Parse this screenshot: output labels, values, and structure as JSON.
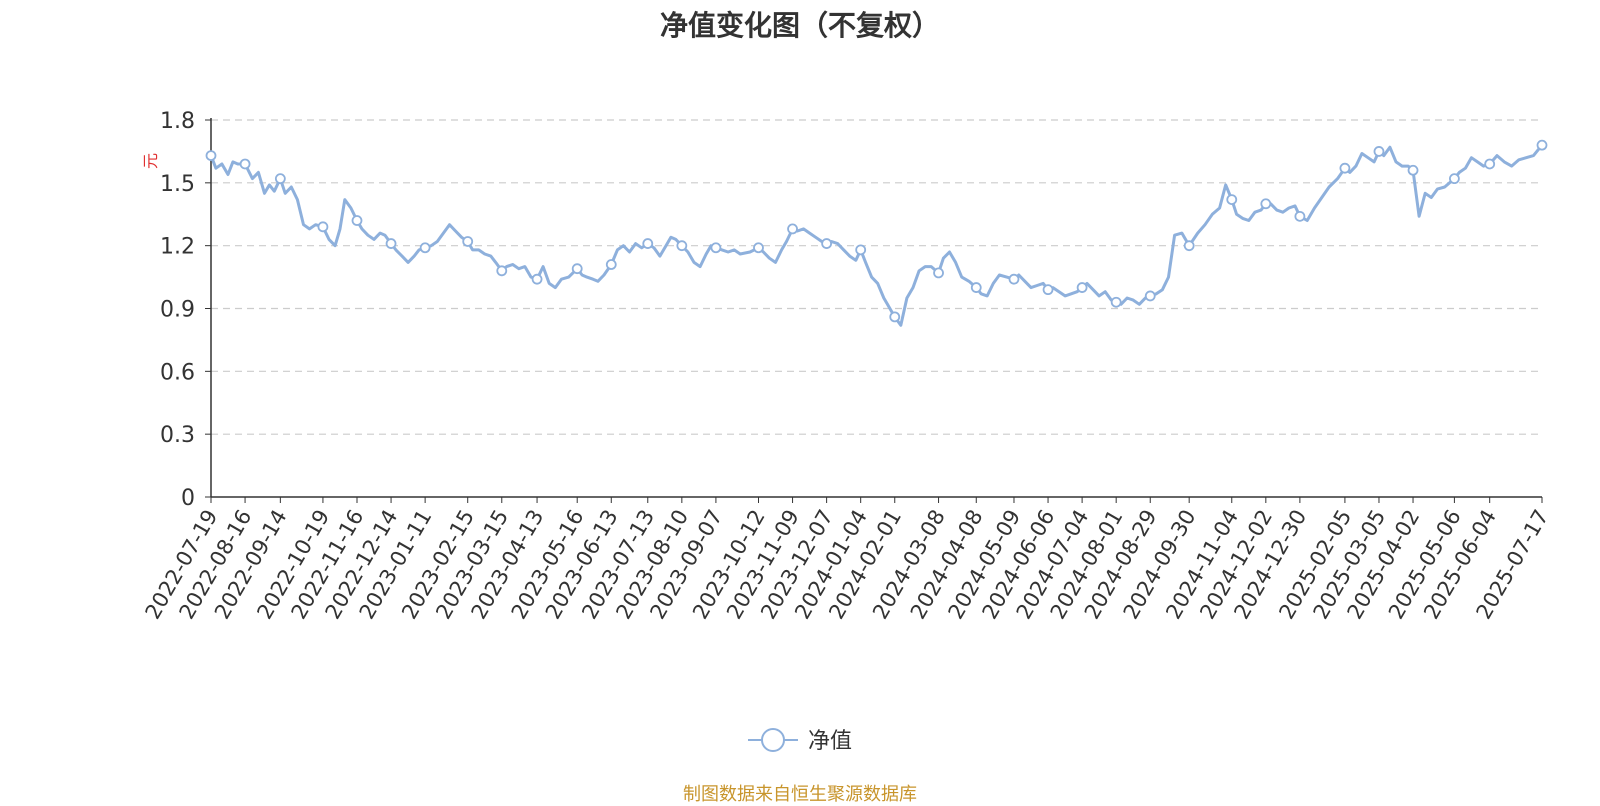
{
  "chart_data": {
    "type": "line",
    "title": "净值变化图（不复权）",
    "ylabel": "元",
    "xlabel": "",
    "ylim": [
      0,
      1.8
    ],
    "yticks": [
      "0",
      "0.3",
      "0.6",
      "0.9",
      "1.2",
      "1.5",
      "1.8"
    ],
    "x_start": "2022-07-19",
    "x_end": "2025-07-17",
    "x_tick_labels": [
      "2022-07-19",
      "2022-08-16",
      "2022-09-14",
      "2022-10-19",
      "2022-11-16",
      "2022-12-14",
      "2023-01-11",
      "2023-02-15",
      "2023-03-15",
      "2023-04-13",
      "2023-05-16",
      "2023-06-13",
      "2023-07-13",
      "2023-08-10",
      "2023-09-07",
      "2023-10-12",
      "2023-11-09",
      "2023-12-07",
      "2024-01-04",
      "2024-02-01",
      "2024-03-08",
      "2024-04-08",
      "2024-05-09",
      "2024-06-06",
      "2024-07-04",
      "2024-08-01",
      "2024-08-29",
      "2024-09-30",
      "2024-11-04",
      "2024-12-02",
      "2024-12-30",
      "2025-02-05",
      "2025-03-05",
      "2025-04-02",
      "2025-05-06",
      "2025-06-04",
      "2025-07-17"
    ],
    "grid": true,
    "legend_position": "bottom",
    "series": [
      {
        "name": "净值",
        "color": "#8eb0dc",
        "x": [
          "2022-07-19",
          "2022-07-23",
          "2022-07-28",
          "2022-08-02",
          "2022-08-06",
          "2022-08-10",
          "2022-08-16",
          "2022-08-22",
          "2022-08-27",
          "2022-09-01",
          "2022-09-05",
          "2022-09-09",
          "2022-09-14",
          "2022-09-18",
          "2022-09-23",
          "2022-09-28",
          "2022-10-03",
          "2022-10-08",
          "2022-10-13",
          "2022-10-19",
          "2022-10-24",
          "2022-10-29",
          "2022-11-02",
          "2022-11-06",
          "2022-11-11",
          "2022-11-16",
          "2022-11-20",
          "2022-11-25",
          "2022-11-30",
          "2022-12-05",
          "2022-12-09",
          "2022-12-14",
          "2022-12-18",
          "2022-12-23",
          "2022-12-28",
          "2023-01-02",
          "2023-01-06",
          "2023-01-11",
          "2023-01-16",
          "2023-01-21",
          "2023-01-26",
          "2023-01-31",
          "2023-02-05",
          "2023-02-10",
          "2023-02-15",
          "2023-02-19",
          "2023-02-24",
          "2023-03-01",
          "2023-03-06",
          "2023-03-10",
          "2023-03-15",
          "2023-03-19",
          "2023-03-24",
          "2023-03-29",
          "2023-04-03",
          "2023-04-08",
          "2023-04-13",
          "2023-04-18",
          "2023-04-23",
          "2023-04-28",
          "2023-05-03",
          "2023-05-09",
          "2023-05-16",
          "2023-05-20",
          "2023-05-24",
          "2023-05-29",
          "2023-06-02",
          "2023-06-07",
          "2023-06-13",
          "2023-06-18",
          "2023-06-23",
          "2023-06-28",
          "2023-07-03",
          "2023-07-08",
          "2023-07-13",
          "2023-07-18",
          "2023-07-23",
          "2023-07-28",
          "2023-08-01",
          "2023-08-05",
          "2023-08-10",
          "2023-08-15",
          "2023-08-20",
          "2023-08-25",
          "2023-08-30",
          "2023-09-03",
          "2023-09-07",
          "2023-09-12",
          "2023-09-17",
          "2023-09-22",
          "2023-09-27",
          "2023-10-05",
          "2023-10-12",
          "2023-10-16",
          "2023-10-21",
          "2023-10-26",
          "2023-10-31",
          "2023-11-04",
          "2023-11-09",
          "2023-11-13",
          "2023-11-18",
          "2023-11-23",
          "2023-11-28",
          "2023-12-03",
          "2023-12-07",
          "2023-12-11",
          "2023-12-16",
          "2023-12-21",
          "2023-12-26",
          "2023-12-31",
          "2024-01-04",
          "2024-01-08",
          "2024-01-13",
          "2024-01-18",
          "2024-01-23",
          "2024-01-28",
          "2024-02-01",
          "2024-02-06",
          "2024-02-11",
          "2024-02-16",
          "2024-02-21",
          "2024-02-26",
          "2024-03-02",
          "2024-03-08",
          "2024-03-12",
          "2024-03-17",
          "2024-03-22",
          "2024-03-27",
          "2024-04-02",
          "2024-04-08",
          "2024-04-12",
          "2024-04-17",
          "2024-04-22",
          "2024-04-27",
          "2024-05-03",
          "2024-05-09",
          "2024-05-13",
          "2024-05-18",
          "2024-05-23",
          "2024-05-28",
          "2024-06-02",
          "2024-06-06",
          "2024-06-10",
          "2024-06-15",
          "2024-06-20",
          "2024-06-25",
          "2024-06-30",
          "2024-07-04",
          "2024-07-08",
          "2024-07-13",
          "2024-07-18",
          "2024-07-23",
          "2024-07-28",
          "2024-08-01",
          "2024-08-05",
          "2024-08-10",
          "2024-08-15",
          "2024-08-20",
          "2024-08-25",
          "2024-08-29",
          "2024-09-03",
          "2024-09-08",
          "2024-09-13",
          "2024-09-18",
          "2024-09-24",
          "2024-09-30",
          "2024-10-07",
          "2024-10-13",
          "2024-10-19",
          "2024-10-25",
          "2024-10-30",
          "2024-11-04",
          "2024-11-08",
          "2024-11-13",
          "2024-11-18",
          "2024-11-23",
          "2024-11-28",
          "2024-12-02",
          "2024-12-06",
          "2024-12-11",
          "2024-12-16",
          "2024-12-21",
          "2024-12-26",
          "2024-12-30",
          "2025-01-05",
          "2025-01-11",
          "2025-01-17",
          "2025-01-23",
          "2025-01-30",
          "2025-02-05",
          "2025-02-09",
          "2025-02-14",
          "2025-02-19",
          "2025-02-24",
          "2025-03-01",
          "2025-03-05",
          "2025-03-09",
          "2025-03-14",
          "2025-03-19",
          "2025-03-24",
          "2025-03-29",
          "2025-04-02",
          "2025-04-07",
          "2025-04-12",
          "2025-04-17",
          "2025-04-22",
          "2025-04-28",
          "2025-05-06",
          "2025-05-10",
          "2025-05-15",
          "2025-05-20",
          "2025-05-25",
          "2025-05-30",
          "2025-06-04",
          "2025-06-10",
          "2025-06-16",
          "2025-06-22",
          "2025-06-28",
          "2025-07-04",
          "2025-07-10",
          "2025-07-17"
        ],
        "values": [
          1.63,
          1.57,
          1.59,
          1.54,
          1.6,
          1.59,
          1.59,
          1.52,
          1.55,
          1.45,
          1.49,
          1.46,
          1.52,
          1.45,
          1.48,
          1.42,
          1.3,
          1.28,
          1.3,
          1.29,
          1.23,
          1.2,
          1.28,
          1.42,
          1.38,
          1.32,
          1.28,
          1.25,
          1.23,
          1.26,
          1.25,
          1.21,
          1.18,
          1.15,
          1.12,
          1.15,
          1.18,
          1.19,
          1.2,
          1.22,
          1.26,
          1.3,
          1.27,
          1.24,
          1.22,
          1.18,
          1.18,
          1.16,
          1.15,
          1.12,
          1.08,
          1.1,
          1.11,
          1.09,
          1.1,
          1.05,
          1.04,
          1.1,
          1.02,
          1.0,
          1.04,
          1.05,
          1.09,
          1.06,
          1.05,
          1.04,
          1.03,
          1.06,
          1.11,
          1.18,
          1.2,
          1.17,
          1.21,
          1.19,
          1.21,
          1.19,
          1.15,
          1.2,
          1.24,
          1.23,
          1.2,
          1.17,
          1.12,
          1.1,
          1.16,
          1.2,
          1.19,
          1.18,
          1.17,
          1.18,
          1.16,
          1.17,
          1.19,
          1.17,
          1.14,
          1.12,
          1.18,
          1.22,
          1.28,
          1.27,
          1.28,
          1.26,
          1.24,
          1.22,
          1.21,
          1.22,
          1.21,
          1.18,
          1.15,
          1.13,
          1.18,
          1.12,
          1.05,
          1.02,
          0.95,
          0.9,
          0.86,
          0.82,
          0.95,
          1.0,
          1.08,
          1.1,
          1.1,
          1.07,
          1.14,
          1.17,
          1.12,
          1.05,
          1.03,
          1.0,
          0.97,
          0.96,
          1.02,
          1.06,
          1.05,
          1.04,
          1.06,
          1.03,
          1.0,
          1.01,
          1.02,
          0.99,
          1.0,
          0.98,
          0.96,
          0.97,
          0.98,
          1.0,
          1.02,
          0.99,
          0.96,
          0.98,
          0.94,
          0.93,
          0.92,
          0.95,
          0.94,
          0.92,
          0.95,
          0.96,
          0.97,
          0.99,
          1.05,
          1.25,
          1.26,
          1.2,
          1.26,
          1.3,
          1.35,
          1.38,
          1.49,
          1.42,
          1.35,
          1.33,
          1.32,
          1.36,
          1.37,
          1.4,
          1.4,
          1.37,
          1.36,
          1.38,
          1.39,
          1.34,
          1.32,
          1.38,
          1.43,
          1.48,
          1.52,
          1.57,
          1.55,
          1.58,
          1.64,
          1.62,
          1.6,
          1.65,
          1.63,
          1.67,
          1.6,
          1.58,
          1.58,
          1.56,
          1.34,
          1.45,
          1.43,
          1.47,
          1.48,
          1.52,
          1.55,
          1.57,
          1.62,
          1.6,
          1.58,
          1.59,
          1.63,
          1.6,
          1.58,
          1.61,
          1.62,
          1.63,
          1.68
        ]
      }
    ],
    "markers": [
      "2022-07-19",
      "2022-08-16",
      "2022-09-14",
      "2022-10-19",
      "2022-11-16",
      "2022-12-14",
      "2023-01-11",
      "2023-02-15",
      "2023-03-15",
      "2023-04-13",
      "2023-05-16",
      "2023-06-13",
      "2023-07-13",
      "2023-08-10",
      "2023-09-07",
      "2023-10-12",
      "2023-11-09",
      "2023-12-07",
      "2024-01-04",
      "2024-02-01",
      "2024-03-08",
      "2024-04-08",
      "2024-05-09",
      "2024-06-06",
      "2024-07-04",
      "2024-08-01",
      "2024-08-29",
      "2024-09-30",
      "2024-11-04",
      "2024-12-02",
      "2024-12-30",
      "2025-02-05",
      "2025-03-05",
      "2025-04-02",
      "2025-05-06",
      "2025-06-04",
      "2025-07-17"
    ],
    "legend": [
      {
        "label": "净值"
      }
    ],
    "source": "制图数据来自恒生聚源数据库"
  }
}
